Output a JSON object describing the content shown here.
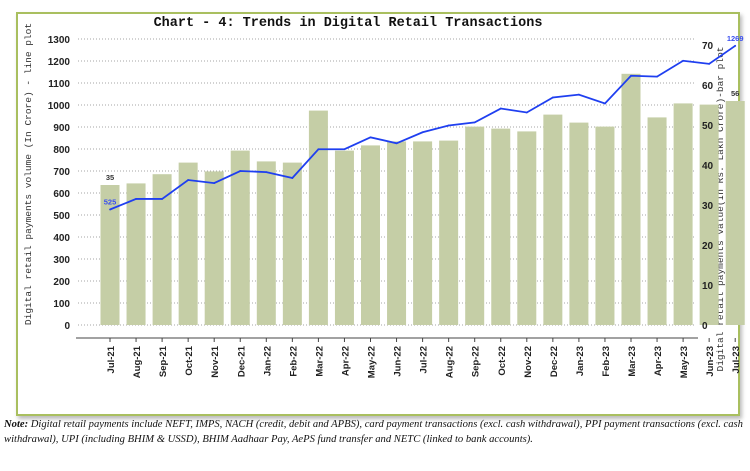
{
  "chart_data": {
    "type": "bar+line",
    "title": "Chart - 4: Trends in Digital Retail Transactions",
    "ylabel_left": "Digital retail payments volume (In Crore) - line plot",
    "ylabel_right": "Digital retail payments value(In Rs. Lakh Crore)-bar plot",
    "categories": [
      "Jul-21",
      "Aug-21",
      "Sep-21",
      "Oct-21",
      "Nov-21",
      "Dec-21",
      "Jan-22",
      "Feb-22",
      "Mar-22",
      "Apr-22",
      "May-22",
      "Jun-22",
      "Jul-22",
      "Aug-22",
      "Sep-22",
      "Oct-22",
      "Nov-22",
      "Dec-22",
      "Jan-23",
      "Feb-23",
      "Mar-23",
      "Apr-23",
      "May-23",
      "Jun-23",
      "Jul-23"
    ],
    "ylim_left": [
      0,
      1300
    ],
    "yticks_left": [
      0,
      100,
      200,
      300,
      400,
      500,
      600,
      700,
      800,
      900,
      1000,
      1100,
      1200,
      1300
    ],
    "ylim_right": [
      0,
      70
    ],
    "yticks_right": [
      0,
      10,
      20,
      30,
      40,
      50,
      60,
      70
    ],
    "grid": true,
    "series": [
      {
        "kind": "bar",
        "axis": "right",
        "color": "#c5cea6",
        "values": [
          35,
          35.4,
          37.7,
          40.6,
          38.4,
          43.6,
          40.9,
          40.6,
          53.6,
          43.6,
          44.9,
          45.9,
          45.9,
          46.1,
          49.6,
          49.1,
          48.4,
          52.6,
          50.6,
          49.6,
          62.8,
          51.9,
          55.4,
          55.1,
          56
        ],
        "labels": {
          "0": "35",
          "24": "56"
        }
      },
      {
        "kind": "line",
        "axis": "left",
        "color": "#1f3ff0",
        "values": [
          525,
          573,
          573,
          659,
          645,
          700,
          695,
          668,
          799,
          799,
          853,
          826,
          876,
          907,
          921,
          984,
          966,
          1034,
          1047,
          1007,
          1133,
          1129,
          1201,
          1187,
          1269
        ],
        "labels": {
          "0": "525",
          "24": "1269"
        }
      }
    ]
  },
  "note": {
    "prefix": "Note:",
    "text": " Digital retail payments include NEFT, IMPS, NACH (credit, debit and APBS), card payment transactions (excl. cash withdrawal), PPI payment transactions (excl. cash withdrawal), UPI (including BHIM & USSD), BHIM Aadhaar Pay, AePS fund transfer and NETC (linked to bank accounts)."
  }
}
